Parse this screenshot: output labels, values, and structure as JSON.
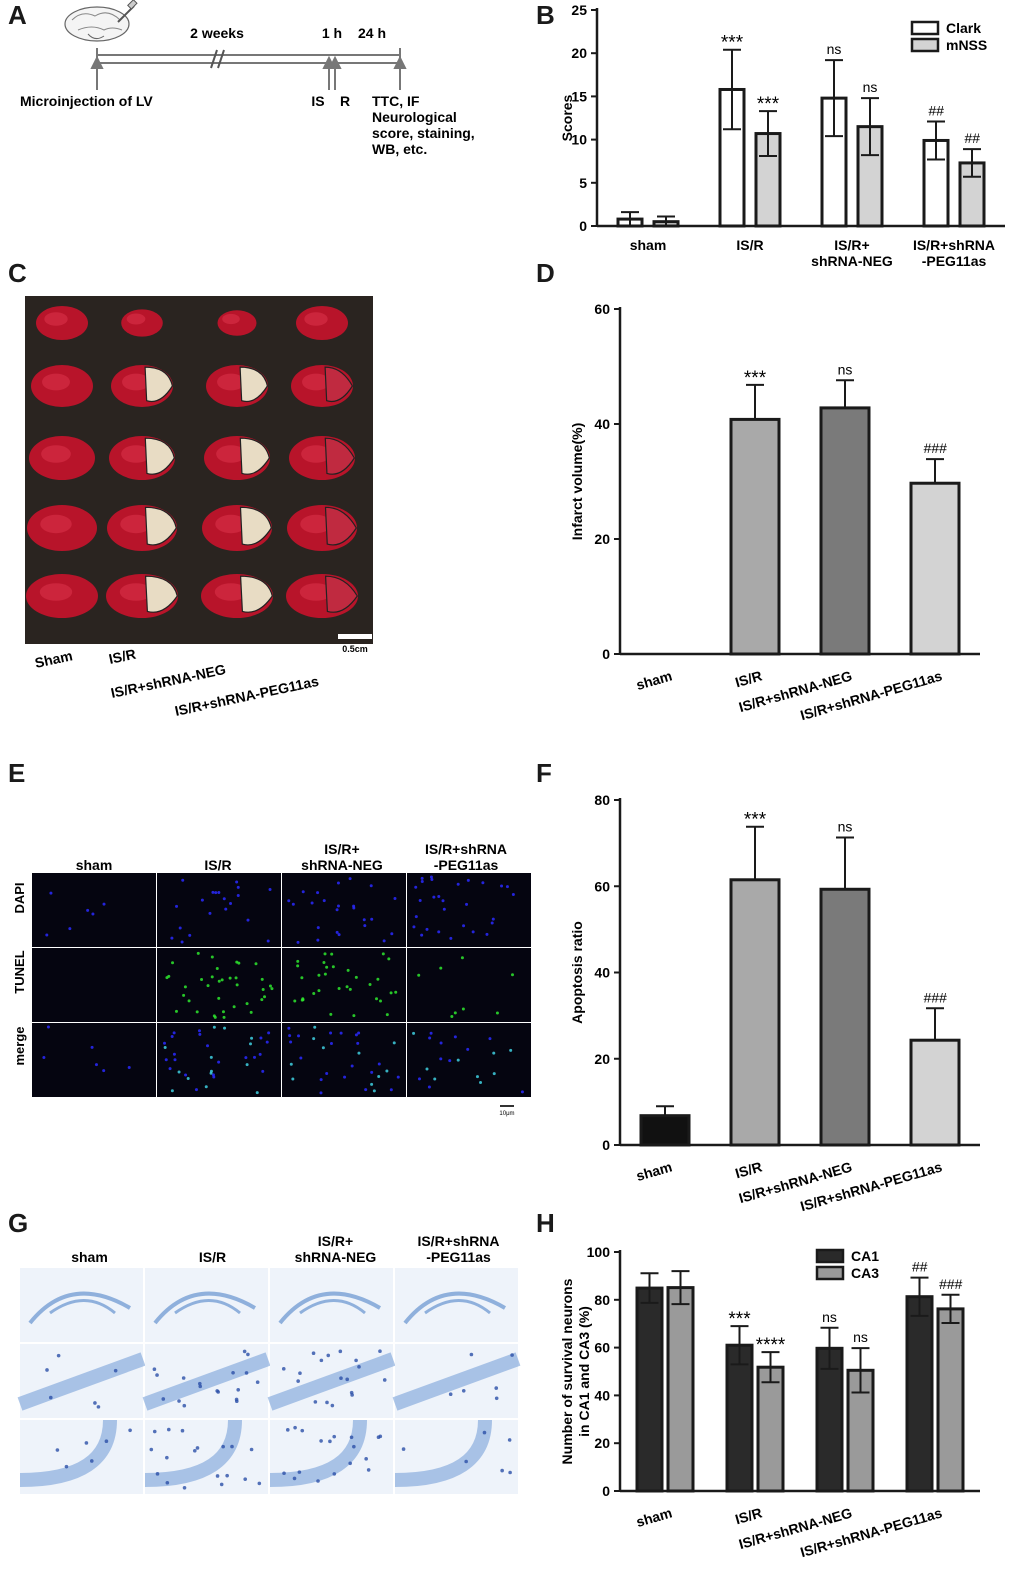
{
  "panels": {
    "A": "A",
    "B": "B",
    "C": "C",
    "D": "D",
    "E": "E",
    "F": "F",
    "G": "G",
    "H": "H"
  },
  "timeline": {
    "weeks": "2 weeks",
    "hour1": "1 h",
    "hour24": "24 h",
    "microinjection": "Microinjection of LV",
    "is": "IS",
    "r": "R",
    "outcome_lines": [
      "TTC, IF",
      "Neurological",
      "score, staining,",
      "WB, etc."
    ]
  },
  "photoC": {
    "groups": [
      "Sham",
      "IS/R",
      "IS/R+shRNA-NEG",
      "IS/R+shRNA-PEG11as"
    ],
    "scale": "0.5cm"
  },
  "tunelE": {
    "columns": [
      "sham",
      "IS/R",
      "IS/R+\nshRNA-NEG",
      "IS/R+shRNA\n-PEG11as"
    ],
    "rows": [
      "DAPI",
      "TUNEL",
      "merge"
    ],
    "row_colors": [
      "#1a1aff",
      "#22cc22",
      "#111111"
    ],
    "scale": "10μm"
  },
  "nisslG": {
    "columns": [
      "sham",
      "IS/R",
      "IS/R+\nshRNA-NEG",
      "IS/R+shRNA\n-PEG11as"
    ]
  },
  "chart_data": [
    {
      "id": "B",
      "type": "bar",
      "categories": [
        "sham",
        "IS/R",
        "IS/R+\nshRNA-NEG",
        "IS/R+shRNA\n-PEG11as"
      ],
      "series": [
        {
          "name": "Clark",
          "values": [
            0.8,
            15.8,
            14.8,
            9.9
          ],
          "errors": [
            0.8,
            4.6,
            4.4,
            2.2
          ],
          "color": "#ffffff",
          "annotations": [
            "",
            "***",
            "ns",
            "##"
          ]
        },
        {
          "name": "mNSS",
          "values": [
            0.5,
            10.7,
            11.5,
            7.3
          ],
          "errors": [
            0.6,
            2.6,
            3.3,
            1.6
          ],
          "color": "#d3d3d3",
          "annotations": [
            "",
            "***",
            "ns",
            "##"
          ]
        }
      ],
      "ylabel": "Scores",
      "ylim": [
        0,
        25
      ],
      "yticks": [
        0,
        5,
        10,
        15,
        20,
        25
      ],
      "legend": "top-right"
    },
    {
      "id": "D",
      "type": "bar",
      "categories": [
        "sham",
        "IS/R",
        "IS/R+shRNA-NEG",
        "IS/R+shRNA-PEG11as"
      ],
      "values": [
        0,
        40.8,
        42.8,
        29.7
      ],
      "errors": [
        0,
        6.0,
        4.8,
        4.2
      ],
      "colors": [
        "#111111",
        "#a9a9a9",
        "#7a7a7a",
        "#d3d3d3"
      ],
      "annotations": [
        "",
        "***",
        "ns",
        "###"
      ],
      "ylabel": "Infarct volume(%)",
      "ylim": [
        0,
        60
      ],
      "yticks": [
        0,
        20,
        40,
        60
      ]
    },
    {
      "id": "F",
      "type": "bar",
      "categories": [
        "sham",
        "IS/R",
        "IS/R+shRNA-NEG",
        "IS/R+shRNA-PEG11as"
      ],
      "values": [
        6.8,
        61.5,
        59.3,
        24.3
      ],
      "errors": [
        2.2,
        12.3,
        12.0,
        7.4
      ],
      "colors": [
        "#111111",
        "#a9a9a9",
        "#7a7a7a",
        "#d3d3d3"
      ],
      "annotations": [
        "",
        "***",
        "ns",
        "###"
      ],
      "ylabel": "Apoptosis ratio",
      "ylim": [
        0,
        80
      ],
      "yticks": [
        0,
        20,
        40,
        60,
        80
      ]
    },
    {
      "id": "H",
      "type": "bar",
      "categories": [
        "sham",
        "IS/R",
        "IS/R+shRNA-NEG",
        "IS/R+shRNA-PEG11as"
      ],
      "series": [
        {
          "name": "CA1",
          "values": [
            84.9,
            61.0,
            59.7,
            81.3
          ],
          "errors": [
            6.2,
            8.0,
            8.6,
            8.0
          ],
          "color": "#2a2a2a",
          "annotations": [
            "",
            "***",
            "ns",
            "##"
          ]
        },
        {
          "name": "CA3",
          "values": [
            85.1,
            51.8,
            50.5,
            76.2
          ],
          "errors": [
            6.9,
            6.3,
            9.3,
            5.9
          ],
          "color": "#9a9a9a",
          "annotations": [
            "",
            "****",
            "ns",
            "###"
          ]
        }
      ],
      "ylabel": "Number of survival neurons\nin CA1 and CA3 (%)",
      "ylim": [
        0,
        100
      ],
      "yticks": [
        0,
        20,
        40,
        60,
        80,
        100
      ],
      "legend": "top-center"
    }
  ]
}
